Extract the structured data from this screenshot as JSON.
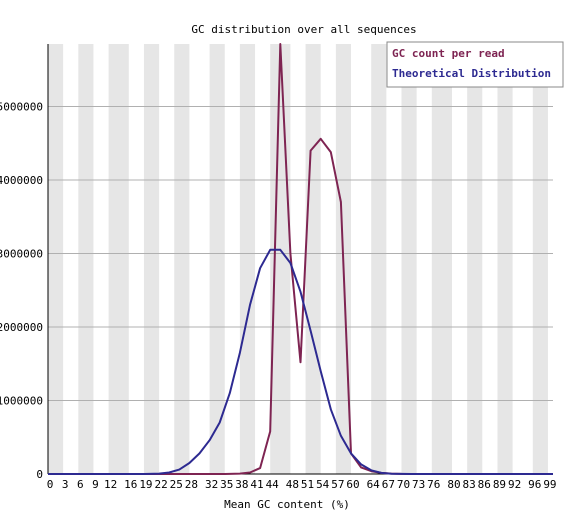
{
  "chart_data": {
    "type": "line",
    "title": "GC distribution over all sequences",
    "xlabel": "Mean GC content (%)",
    "ylabel": "",
    "xlim": [
      0,
      100
    ],
    "ylim": [
      0,
      5850000
    ],
    "grid": true,
    "legend_position": "top-right",
    "x_ticks": [
      0,
      3,
      6,
      9,
      12,
      16,
      19,
      22,
      25,
      28,
      32,
      35,
      38,
      41,
      44,
      48,
      51,
      54,
      57,
      60,
      64,
      67,
      70,
      73,
      76,
      80,
      83,
      86,
      89,
      92,
      96,
      99
    ],
    "x_tick_labels": [
      "0",
      "3",
      "6",
      "9",
      "12",
      "16",
      "19",
      "22",
      "25",
      "28",
      "32",
      "35",
      "38",
      "41",
      "44",
      "48",
      "51",
      "54",
      "57",
      "60",
      "64",
      "67",
      "70",
      "73",
      "76",
      "80",
      "83",
      "86",
      "89",
      "92",
      "96",
      "99"
    ],
    "y_ticks": [
      0,
      1000000,
      2000000,
      3000000,
      4000000,
      5000000
    ],
    "y_tick_labels": [
      "0",
      "1000000",
      "2000000",
      "3000000",
      "4000000",
      "5000000"
    ],
    "series": [
      {
        "name": "GC count per read",
        "color": "#7e2452",
        "x": [
          0,
          3,
          6,
          9,
          12,
          16,
          19,
          22,
          25,
          28,
          32,
          35,
          38,
          40,
          42,
          44,
          46,
          48,
          50,
          52,
          54,
          56,
          58,
          60,
          62,
          64,
          66,
          68,
          70,
          73,
          76,
          80,
          83,
          86,
          89,
          92,
          96,
          100
        ],
        "y": [
          0,
          0,
          0,
          0,
          0,
          0,
          0,
          0,
          0,
          0,
          0,
          0,
          5000,
          20000,
          80000,
          580000,
          5850000,
          3000000,
          1520000,
          4400000,
          4560000,
          4380000,
          3700000,
          280000,
          90000,
          40000,
          15000,
          5000,
          1000,
          0,
          0,
          0,
          0,
          0,
          0,
          0,
          0,
          0
        ]
      },
      {
        "name": "Theoretical Distribution",
        "color": "#2d2a91",
        "x": [
          0,
          3,
          6,
          9,
          12,
          16,
          19,
          22,
          24,
          26,
          28,
          30,
          32,
          34,
          36,
          38,
          40,
          42,
          44,
          46,
          48,
          50,
          52,
          54,
          56,
          58,
          60,
          62,
          64,
          66,
          68,
          70,
          72,
          76,
          80,
          83,
          86,
          89,
          92,
          96,
          100
        ],
        "y": [
          0,
          0,
          0,
          0,
          0,
          0,
          0,
          5000,
          20000,
          60000,
          150000,
          280000,
          460000,
          700000,
          1100000,
          1650000,
          2300000,
          2800000,
          3050000,
          3050000,
          2870000,
          2480000,
          1950000,
          1400000,
          880000,
          520000,
          280000,
          130000,
          50000,
          15000,
          4000,
          1000,
          0,
          0,
          0,
          0,
          0,
          0,
          0,
          0,
          0
        ]
      }
    ]
  }
}
